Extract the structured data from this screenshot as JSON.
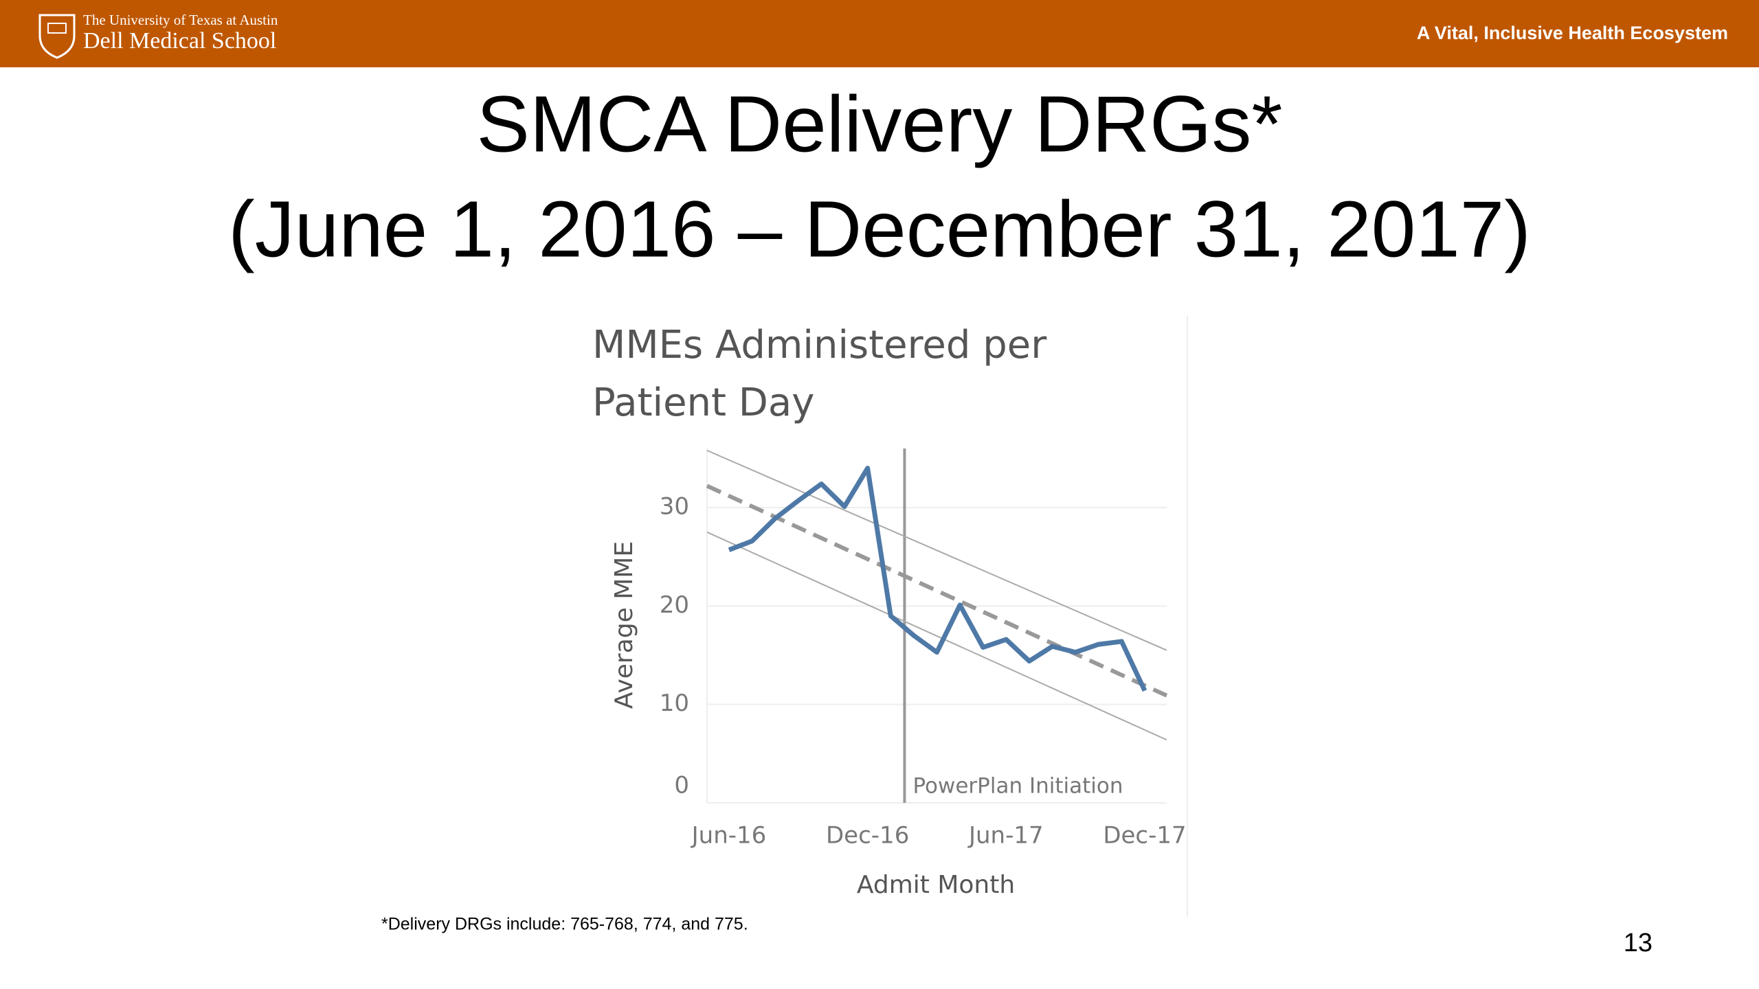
{
  "header": {
    "university": "The University of Texas at Austin",
    "school": "Dell Medical School",
    "tagline": "A Vital, Inclusive Health Ecosystem"
  },
  "title": [
    "SMCA Delivery DRGs*",
    "(June 1, 2016 – December 31, 2017)"
  ],
  "footnote": "*Delivery DRGs include:  765-768, 774, and 775.",
  "page_number": "13",
  "chart_data": {
    "type": "line",
    "title": [
      "MMEs Administered per",
      "Patient Day"
    ],
    "x_label": "Admit Month",
    "y_label": "Average MME",
    "categories": [
      "Jun-16",
      null,
      null,
      null,
      null,
      null,
      "Dec-16",
      null,
      null,
      null,
      null,
      null,
      "Jun-17",
      null,
      null,
      null,
      null,
      null,
      "Dec-17"
    ],
    "series": [
      {
        "color": "#4e79a7",
        "values": [
          25.7,
          26.6,
          28.9,
          30.7,
          32.4,
          30.1,
          34.0,
          19.0,
          17.0,
          15.3,
          20.1,
          15.8,
          16.6,
          14.4,
          15.9,
          15.3,
          16.1,
          16.4,
          11.4
        ]
      }
    ],
    "trend_lines": [
      {
        "style": "dashed",
        "color": "#999999",
        "values": [
          32.2,
          10.9
        ]
      },
      {
        "style": "thin",
        "color": "#aaaaaa",
        "values": [
          35.8,
          15.5
        ]
      },
      {
        "style": "thin",
        "color": "#aaaaaa",
        "values": [
          27.5,
          6.4
        ]
      }
    ],
    "annotation": "PowerPlan Initiation",
    "ylim": [
      0,
      36
    ],
    "yticks": [
      0,
      10,
      20,
      30
    ],
    "grid": true
  }
}
